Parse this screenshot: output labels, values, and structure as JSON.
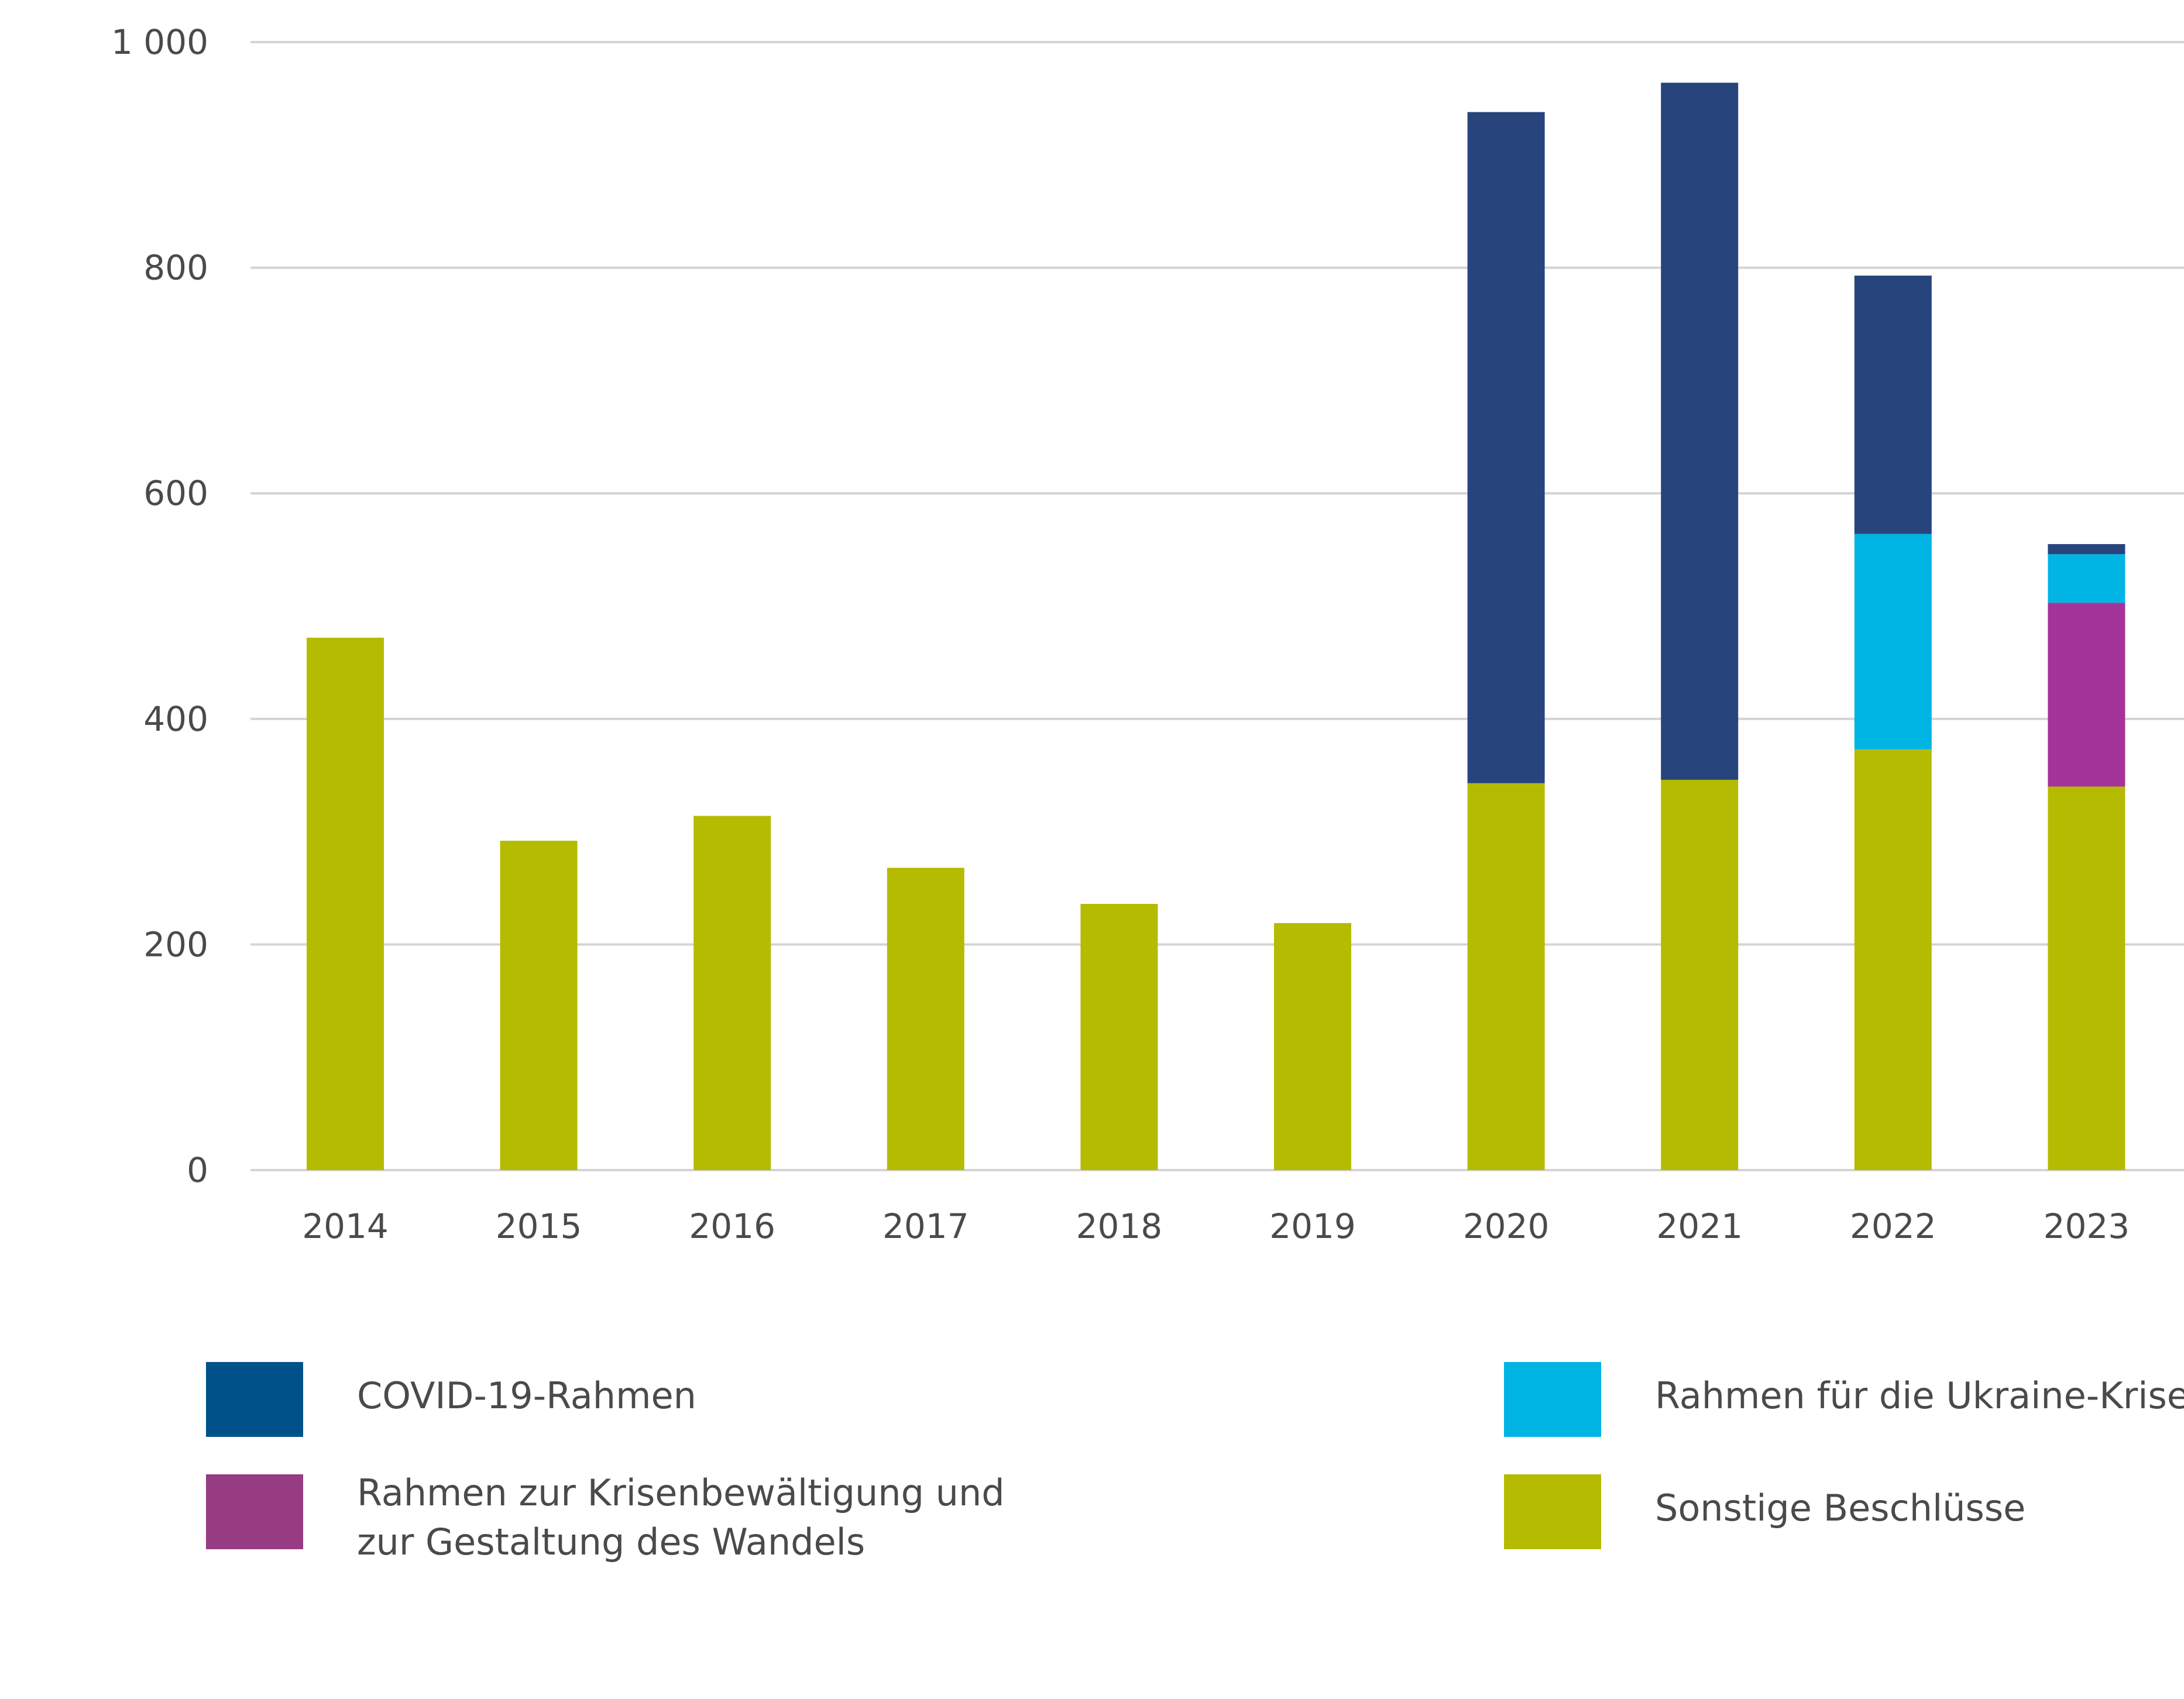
{
  "chart_data": {
    "type": "bar",
    "stacked": true,
    "categories": [
      "2014",
      "2015",
      "2016",
      "2017",
      "2018",
      "2019",
      "2020",
      "2021",
      "2022",
      "2023"
    ],
    "series": [
      {
        "name": "Sonstige Beschlüsse",
        "color": "#b5bb00",
        "values": [
          472,
          292,
          314,
          268,
          236,
          219,
          343,
          346,
          373,
          340
        ]
      },
      {
        "name": "Rahmen zur Krisenbewältigung und zur Gestaltung des Wandels",
        "color": "#a4349a",
        "values": [
          0,
          0,
          0,
          0,
          0,
          0,
          0,
          0,
          0,
          163
        ]
      },
      {
        "name": "Rahmen für die Ukraine-Krise",
        "color": "#00b4e4",
        "values": [
          0,
          0,
          0,
          0,
          0,
          0,
          0,
          0,
          191,
          43
        ]
      },
      {
        "name": "COVID-19-Rahmen",
        "color": "#27457c",
        "values": [
          0,
          0,
          0,
          0,
          0,
          0,
          595,
          618,
          229,
          9
        ]
      }
    ],
    "ylim": [
      0,
      1000
    ],
    "yticks": [
      0,
      200,
      400,
      600,
      800,
      1000
    ],
    "ytick_labels": [
      "0",
      "200",
      "400",
      "600",
      "800",
      "1 000"
    ],
    "grid": true,
    "legend_position": "bottom"
  },
  "legend": {
    "covid": {
      "label": "COVID-19-Rahmen",
      "color": "#005189"
    },
    "ukraine": {
      "label": "Rahmen für die Ukraine-Krise",
      "color": "#00b4e4"
    },
    "krise_line1": "Rahmen zur Krisenbewältigung und",
    "krise_line2": "zur Gestaltung des Wandels",
    "krise_color": "#973b82",
    "sonstige": {
      "label": "Sonstige Beschlüsse",
      "color": "#b5bb00"
    }
  }
}
